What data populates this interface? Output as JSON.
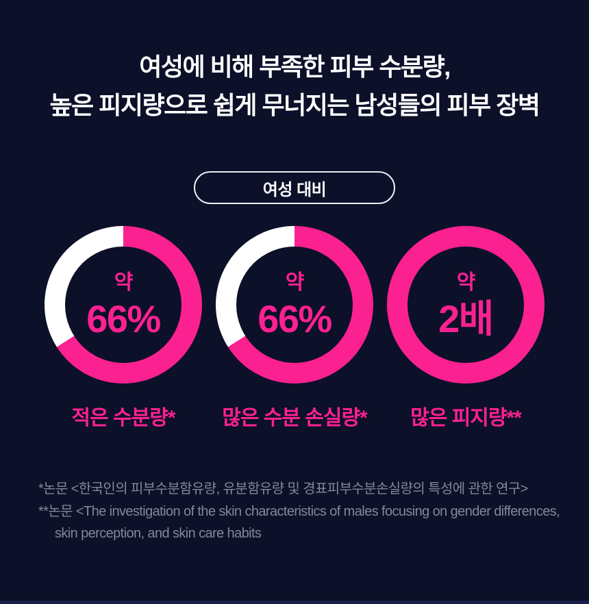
{
  "theme": {
    "background": "#0C1028",
    "accent": "#FB2191",
    "ring_rest": "#FFFFFF",
    "title_color": "#FFFFFF",
    "footnote_color": "#828899",
    "badge_border": "#EDEFF5",
    "bottom_bar": "#18204A"
  },
  "title": {
    "line1": "여성에 비해 부족한 피부 수분량,",
    "line2": "높은 피지량으로 쉽게 무너지는 남성들의 피부 장벽"
  },
  "badge": {
    "label": "여성 대비"
  },
  "chart_data": {
    "type": "pie",
    "subtype": "donut-gauge",
    "comparison_label": "여성 대비",
    "legend_position": "none",
    "grid": false,
    "charts": [
      {
        "label": "적은 수분량*",
        "center_prefix": "약",
        "center_value": "66%",
        "ring_fill_percent": 66,
        "fill_color": "#FB2191",
        "rest_color": "#FFFFFF"
      },
      {
        "label": "많은 수분 손실량*",
        "center_prefix": "약",
        "center_value": "66%",
        "ring_fill_percent": 66,
        "fill_color": "#FB2191",
        "rest_color": "#FFFFFF"
      },
      {
        "label": "많은 피지량**",
        "center_prefix": "약",
        "center_value": "2배",
        "ring_fill_percent": 100,
        "fill_color": "#FB2191",
        "rest_color": "#FFFFFF"
      }
    ]
  },
  "footnotes": {
    "line1": "*논문 <한국인의 피부수분함유량, 유분함유량 및 경표피부수분손실량의 특성에 관한 연구>",
    "line2": "**논문 <The investigation of the skin characteristics of males focusing on gender differences, skin perception, and skin care habits"
  }
}
